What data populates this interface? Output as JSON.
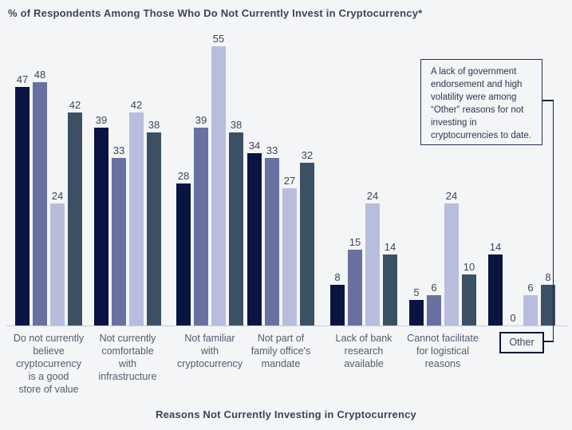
{
  "page": {
    "background": "#f4f5f7"
  },
  "chart_data": {
    "type": "bar",
    "title": "% of Respondents Among Those Who Do Not Currently Invest in Cryptocurrency*",
    "xlabel": "Reasons Not Currently Investing in Cryptocurrency",
    "ylabel": "",
    "ylim": [
      0,
      60
    ],
    "grid": false,
    "legend": "none",
    "value_labels": true,
    "categories": [
      "Do not currently\nbelieve\ncryptocurrency\nis a good\nstore of value",
      "Not currently\ncomfortable\nwith\ninfrastructure",
      "Not familiar\nwith\ncryptocurrency",
      "Not part of\nfamily office's\nmandate",
      "Lack of bank\nresearch\navailable",
      "Cannot facilitate\nfor logistical\nreasons",
      "Other"
    ],
    "series": [
      {
        "name": "series-1",
        "color": "#0a1442",
        "values": [
          47,
          39,
          28,
          34,
          8,
          5,
          14
        ]
      },
      {
        "name": "series-2",
        "color": "#6a709f",
        "values": [
          48,
          33,
          39,
          33,
          15,
          6,
          0
        ]
      },
      {
        "name": "series-3",
        "color": "#b8bddd",
        "values": [
          24,
          42,
          55,
          27,
          24,
          24,
          6
        ]
      },
      {
        "name": "series-4",
        "color": "#3c5064",
        "values": [
          42,
          38,
          38,
          32,
          14,
          10,
          8
        ]
      }
    ],
    "annotation": {
      "text": "A lack of government endorsement and high volatility were among “Other” reasons for not investing in cryptocurrencies to date.",
      "points_to": "Other"
    }
  }
}
